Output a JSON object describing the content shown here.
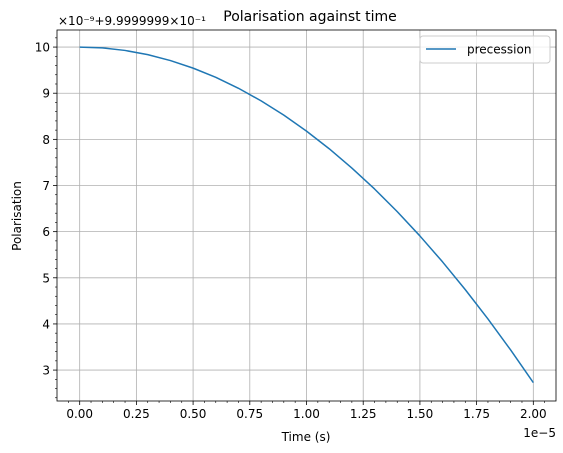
{
  "chart_data": {
    "type": "line",
    "title": "Polarisation against time",
    "xlabel": "Time (s)",
    "ylabel": "Polarisation",
    "x_offset_text": "1e−5",
    "y_offset_text": "×10⁻⁹+9.9999999×10⁻¹",
    "x_ticks": [
      0.0,
      0.25,
      0.5,
      0.75,
      1.0,
      1.25,
      1.5,
      1.75,
      2.0
    ],
    "x_tick_labels": [
      "0.00",
      "0.25",
      "0.50",
      "0.75",
      "1.00",
      "1.25",
      "1.50",
      "1.75",
      "2.00"
    ],
    "y_ticks": [
      3,
      4,
      5,
      6,
      7,
      8,
      9,
      10
    ],
    "y_tick_labels": [
      "3",
      "4",
      "5",
      "6",
      "7",
      "8",
      "9",
      "10"
    ],
    "xlim": [
      -0.1,
      2.1
    ],
    "ylim": [
      2.33,
      10.37
    ],
    "grid": true,
    "minor_ticks": true,
    "legend_position": "upper right",
    "series": [
      {
        "name": "precession",
        "color": "#1f77b4",
        "x": [
          0.0,
          0.1,
          0.2,
          0.3,
          0.4,
          0.5,
          0.6,
          0.7,
          0.8,
          0.9,
          1.0,
          1.1,
          1.2,
          1.3,
          1.4,
          1.5,
          1.6,
          1.7,
          1.8,
          1.9,
          2.0
        ],
        "y": [
          10.0,
          9.982,
          9.927,
          9.836,
          9.708,
          9.544,
          9.344,
          9.107,
          8.834,
          8.525,
          8.179,
          7.797,
          7.379,
          6.925,
          6.434,
          5.907,
          5.344,
          4.744,
          4.108,
          3.436,
          2.728
        ]
      }
    ]
  }
}
